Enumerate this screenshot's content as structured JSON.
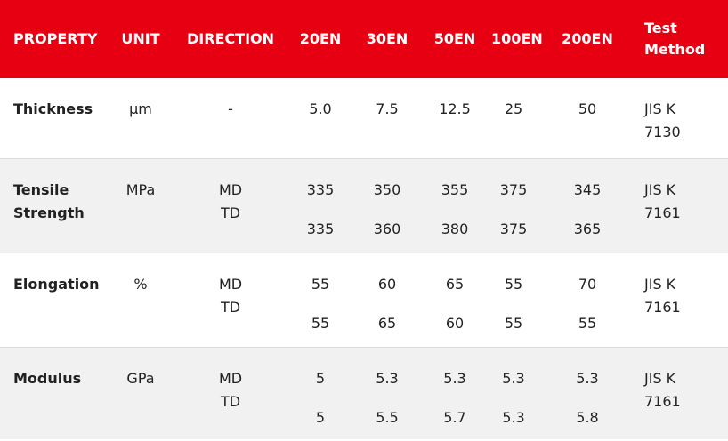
{
  "headers": [
    "PROPERTY",
    "UNIT",
    "DIRECTION",
    "20EN",
    "30EN",
    "50EN",
    "100EN",
    "200EN",
    "Test Method"
  ],
  "rows": [
    {
      "property": "Thickness",
      "unit": "μm",
      "direction": "-",
      "values": [
        [
          "5.0"
        ],
        [
          "7.5"
        ],
        [
          "12.5"
        ],
        [
          "25"
        ],
        [
          "50"
        ]
      ],
      "test_method": "JIS K 7130"
    },
    {
      "property": "Tensile Strength",
      "unit": "MPa",
      "direction": "MD TD",
      "values": [
        [
          "335",
          "335"
        ],
        [
          "350",
          "360"
        ],
        [
          "355",
          "380"
        ],
        [
          "375",
          "375"
        ],
        [
          "345",
          "365"
        ]
      ],
      "test_method": "JIS K 7161"
    },
    {
      "property": "Elongation",
      "unit": "%",
      "direction": "MD TD",
      "values": [
        [
          "55",
          "55"
        ],
        [
          "60",
          "65"
        ],
        [
          "65",
          "60"
        ],
        [
          "55",
          "55"
        ],
        [
          "70",
          "55"
        ]
      ],
      "test_method": "JIS K 7161"
    },
    {
      "property": "Modulus",
      "unit": "GPa",
      "direction": "MD TD",
      "values": [
        [
          "5",
          "5"
        ],
        [
          "5.3",
          "5.5"
        ],
        [
          "5.3",
          "5.7"
        ],
        [
          "5.3",
          "5.3"
        ],
        [
          "5.3",
          "5.8"
        ]
      ],
      "test_method": "JIS K 7161"
    }
  ]
}
